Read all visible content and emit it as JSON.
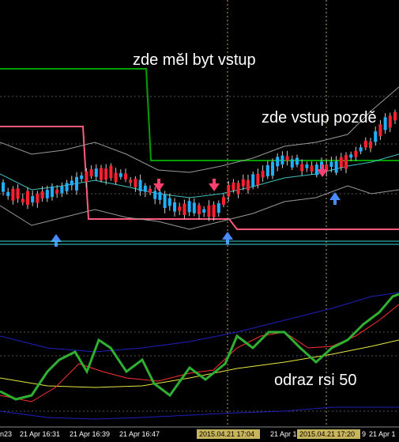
{
  "annotations": {
    "entry_should": "zde měl byt vstup",
    "entry_late": "zde vstup pozdě",
    "rsi_bounce": "odraz rsi 50"
  },
  "time_axis": {
    "labels": [
      "n23",
      "21 Apr 16:31",
      "21 Apr 16:39",
      "21 Apr 16:47",
      "21 Apr 1",
      "9",
      "21 Apr 1"
    ],
    "highlighted": [
      "2015.04.21 17:04",
      "2015.04.21 17:20"
    ]
  }
}
